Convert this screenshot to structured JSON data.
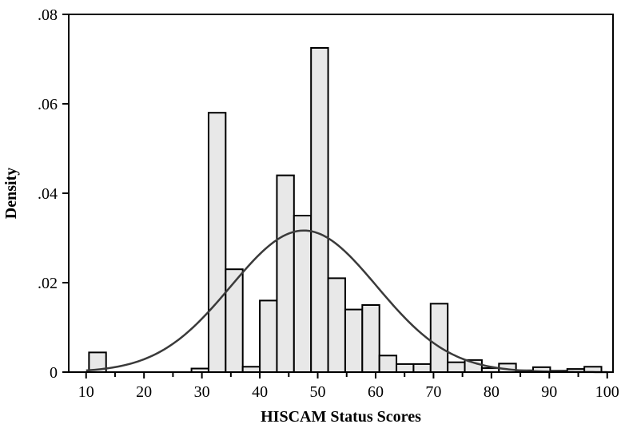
{
  "chart_data": {
    "type": "bar",
    "subtype": "histogram",
    "title": "",
    "xlabel": "HISCAM Status Scores",
    "ylabel": "Density",
    "xlim": [
      7,
      101
    ],
    "ylim": [
      0,
      0.08
    ],
    "x_ticks": [
      10,
      20,
      30,
      40,
      50,
      60,
      70,
      80,
      90,
      100
    ],
    "x_tick_labels": [
      "10",
      "20",
      "30",
      "40",
      "50",
      "60",
      "70",
      "80",
      "90",
      "100"
    ],
    "y_ticks": [
      0,
      0.02,
      0.04,
      0.06,
      0.08
    ],
    "y_tick_labels": [
      "0",
      ".02",
      ".04",
      ".06",
      ".08"
    ],
    "bin_width": 2.95,
    "bins": [
      {
        "start": 10.5,
        "value": 0.0044
      },
      {
        "start": 28.2,
        "value": 0.0008
      },
      {
        "start": 31.15,
        "value": 0.058
      },
      {
        "start": 34.1,
        "value": 0.023
      },
      {
        "start": 37.05,
        "value": 0.0012
      },
      {
        "start": 40.0,
        "value": 0.016
      },
      {
        "start": 42.95,
        "value": 0.044
      },
      {
        "start": 45.9,
        "value": 0.035
      },
      {
        "start": 48.85,
        "value": 0.0725
      },
      {
        "start": 51.8,
        "value": 0.021
      },
      {
        "start": 54.75,
        "value": 0.014
      },
      {
        "start": 57.7,
        "value": 0.015
      },
      {
        "start": 60.65,
        "value": 0.0037
      },
      {
        "start": 63.6,
        "value": 0.0018
      },
      {
        "start": 66.55,
        "value": 0.0018
      },
      {
        "start": 69.5,
        "value": 0.0153
      },
      {
        "start": 72.45,
        "value": 0.0022
      },
      {
        "start": 75.4,
        "value": 0.0027
      },
      {
        "start": 78.35,
        "value": 0.0009
      },
      {
        "start": 81.3,
        "value": 0.0019
      },
      {
        "start": 84.25,
        "value": 0.0004
      },
      {
        "start": 87.2,
        "value": 0.0011
      },
      {
        "start": 90.15,
        "value": 0.0003
      },
      {
        "start": 93.1,
        "value": 0.0007
      },
      {
        "start": 96.05,
        "value": 0.0012
      }
    ],
    "normal_curve": {
      "mean": 47.6,
      "sd": 12.6
    },
    "grid": false,
    "legend": "none"
  }
}
